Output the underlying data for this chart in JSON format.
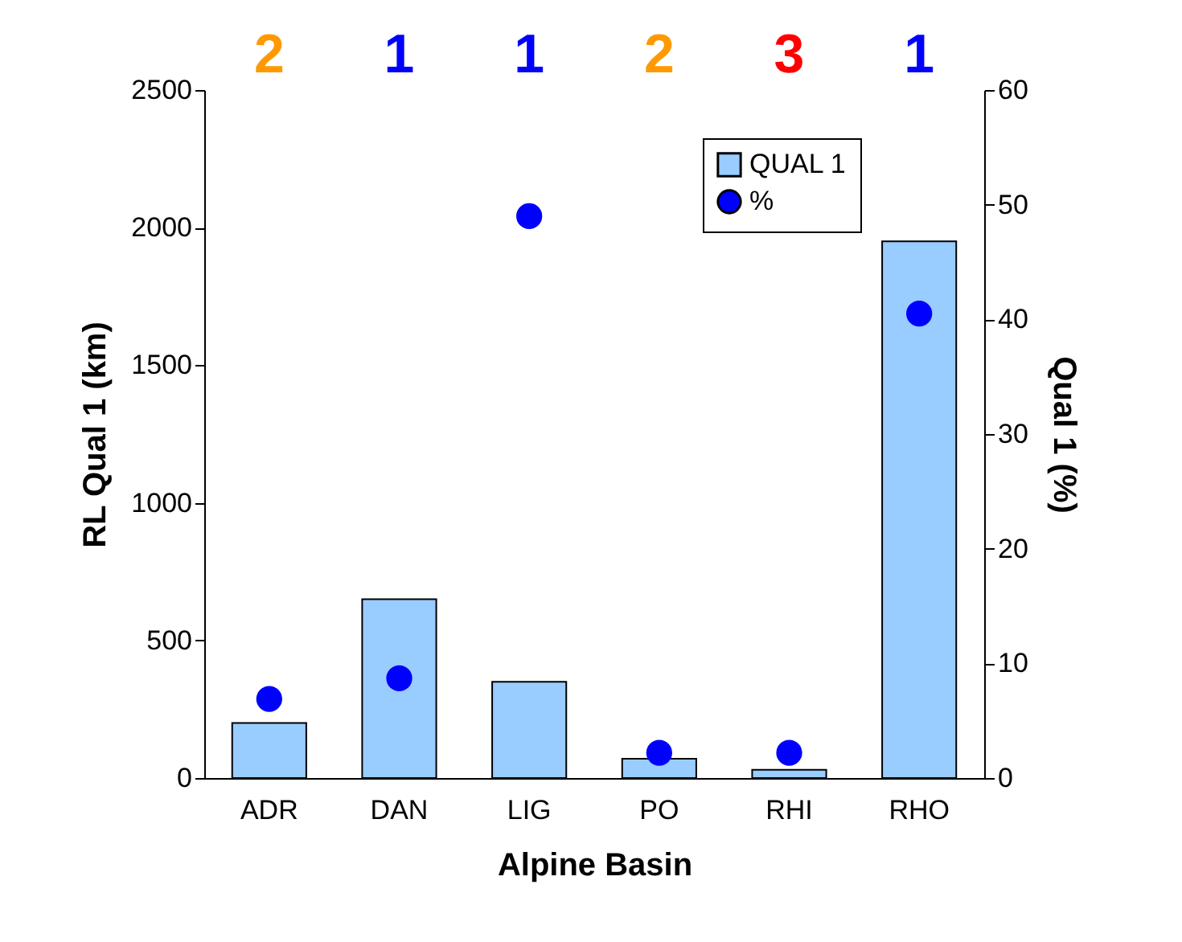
{
  "chart_data": {
    "type": "bar",
    "xlabel": "Alpine Basin",
    "ylabel": "RL Qual 1 (km)",
    "y2label": "Qual 1 (%)",
    "categories": [
      "ADR",
      "DAN",
      "LIG",
      "PO",
      "RHI",
      "RHO"
    ],
    "series": [
      {
        "name": "QUAL 1",
        "color": "#99ccff",
        "values": [
          200,
          650,
          350,
          70,
          30,
          1950
        ]
      },
      {
        "name": "%",
        "type": "scatter",
        "axis": "y2",
        "color": "#0000ff",
        "marker": "circle",
        "values": [
          6.9,
          8.7,
          49,
          2.2,
          2.2,
          40.5
        ]
      }
    ],
    "ylim": [
      0,
      2500
    ],
    "yticks": [
      0,
      500,
      1000,
      1500,
      2000,
      2500
    ],
    "y2lim": [
      0,
      60
    ],
    "y2ticks": [
      0,
      10,
      20,
      30,
      40,
      50,
      60
    ],
    "legend": "top right",
    "grid": false,
    "annotations": [
      "2",
      "1",
      "1",
      "2",
      "3",
      "1"
    ]
  }
}
